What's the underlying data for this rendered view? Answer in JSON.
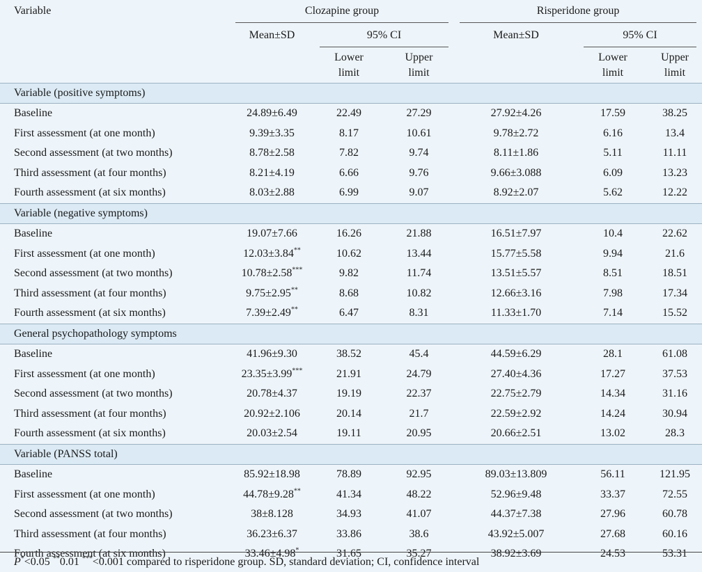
{
  "header": {
    "variable": "Variable",
    "clozapine_group": "Clozapine group",
    "risperidone_group": "Risperidone group",
    "mean_sd": "Mean±SD",
    "ci95": "95% CI",
    "lower_limit": "Lower limit",
    "upper_limit": "Upper limit"
  },
  "sections": [
    {
      "title": "Variable (positive symptoms)",
      "rows": [
        {
          "label": "Baseline",
          "c_mean": "24.89±6.49",
          "c_sup": "",
          "c_low": "22.49",
          "c_up": "27.29",
          "r_mean": "27.92±4.26",
          "r_low": "17.59",
          "r_up": "38.25"
        },
        {
          "label": "First assessment (at one month)",
          "c_mean": "9.39±3.35",
          "c_sup": "",
          "c_low": "8.17",
          "c_up": "10.61",
          "r_mean": "9.78±2.72",
          "r_low": "6.16",
          "r_up": "13.4"
        },
        {
          "label": "Second assessment (at two months)",
          "c_mean": "8.78±2.58",
          "c_sup": "",
          "c_low": "7.82",
          "c_up": "9.74",
          "r_mean": "8.11±1.86",
          "r_low": "5.11",
          "r_up": "11.11"
        },
        {
          "label": "Third assessment (at four months)",
          "c_mean": "8.21±4.19",
          "c_sup": "",
          "c_low": "6.66",
          "c_up": "9.76",
          "r_mean": "9.66±3.088",
          "r_low": "6.09",
          "r_up": "13.23"
        },
        {
          "label": "Fourth assessment (at six months)",
          "c_mean": "8.03±2.88",
          "c_sup": "",
          "c_low": "6.99",
          "c_up": "9.07",
          "r_mean": "8.92±2.07",
          "r_low": "5.62",
          "r_up": "12.22"
        }
      ]
    },
    {
      "title": "Variable (negative symptoms)",
      "rows": [
        {
          "label": "Baseline",
          "c_mean": "19.07±7.66",
          "c_sup": "",
          "c_low": "16.26",
          "c_up": "21.88",
          "r_mean": "16.51±7.97",
          "r_low": "10.4",
          "r_up": "22.62"
        },
        {
          "label": "First assessment (at one month)",
          "c_mean": "12.03±3.84",
          "c_sup": "**",
          "c_low": "10.62",
          "c_up": "13.44",
          "r_mean": "15.77±5.58",
          "r_low": "9.94",
          "r_up": "21.6"
        },
        {
          "label": "Second assessment (at two months)",
          "c_mean": "10.78±2.58",
          "c_sup": "***",
          "c_low": "9.82",
          "c_up": "11.74",
          "r_mean": "13.51±5.57",
          "r_low": "8.51",
          "r_up": "18.51"
        },
        {
          "label": "Third assessment (at four months)",
          "c_mean": "9.75±2.95",
          "c_sup": "**",
          "c_low": "8.68",
          "c_up": "10.82",
          "r_mean": "12.66±3.16",
          "r_low": "7.98",
          "r_up": "17.34"
        },
        {
          "label": "Fourth assessment (at six months)",
          "c_mean": "7.39±2.49",
          "c_sup": "**",
          "c_low": "6.47",
          "c_up": "8.31",
          "r_mean": "11.33±1.70",
          "r_low": "7.14",
          "r_up": "15.52"
        }
      ]
    },
    {
      "title": "General psychopathology symptoms",
      "rows": [
        {
          "label": "Baseline",
          "c_mean": "41.96±9.30",
          "c_sup": "",
          "c_low": "38.52",
          "c_up": "45.4",
          "r_mean": "44.59±6.29",
          "r_low": "28.1",
          "r_up": "61.08"
        },
        {
          "label": "First assessment (at one month)",
          "c_mean": "23.35±3.99",
          "c_sup": "***",
          "c_low": "21.91",
          "c_up": "24.79",
          "r_mean": "27.40±4.36",
          "r_low": "17.27",
          "r_up": "37.53"
        },
        {
          "label": "Second assessment (at two months)",
          "c_mean": "20.78±4.37",
          "c_sup": "",
          "c_low": "19.19",
          "c_up": "22.37",
          "r_mean": "22.75±2.79",
          "r_low": "14.34",
          "r_up": "31.16"
        },
        {
          "label": "Third assessment (at four months)",
          "c_mean": "20.92±2.106",
          "c_sup": "",
          "c_low": "20.14",
          "c_up": "21.7",
          "r_mean": "22.59±2.92",
          "r_low": "14.24",
          "r_up": "30.94"
        },
        {
          "label": "Fourth assessment (at six months)",
          "c_mean": "20.03±2.54",
          "c_sup": "",
          "c_low": "19.11",
          "c_up": "20.95",
          "r_mean": "20.66±2.51",
          "r_low": "13.02",
          "r_up": "28.3"
        }
      ]
    },
    {
      "title": "Variable (PANSS total)",
      "rows": [
        {
          "label": "Baseline",
          "c_mean": "85.92±18.98",
          "c_sup": "",
          "c_low": "78.89",
          "c_up": "92.95",
          "r_mean": "89.03±13.809",
          "r_low": "56.11",
          "r_up": "121.95"
        },
        {
          "label": "First assessment (at one month)",
          "c_mean": "44.78±9.28",
          "c_sup": "**",
          "c_low": "41.34",
          "c_up": "48.22",
          "r_mean": "52.96±9.48",
          "r_low": "33.37",
          "r_up": "72.55"
        },
        {
          "label": "Second assessment (at two months)",
          "c_mean": "38±8.128",
          "c_sup": "",
          "c_low": "34.93",
          "c_up": "41.07",
          "r_mean": "44.37±7.38",
          "r_low": "27.96",
          "r_up": "60.78"
        },
        {
          "label": "Third assessment (at four months)",
          "c_mean": "36.23±6.37",
          "c_sup": "",
          "c_low": "33.86",
          "c_up": "38.6",
          "r_mean": "43.92±5.007",
          "r_low": "27.68",
          "r_up": "60.16"
        },
        {
          "label": "Fourth assessment (at six months)",
          "c_mean": "33.46±4.98",
          "c_sup": "*",
          "c_low": "31.65",
          "c_up": "35.27",
          "r_mean": "38.92±3.69",
          "r_low": "24.53",
          "r_up": "53.31"
        }
      ]
    }
  ],
  "footnote": {
    "p_symbol": "P",
    "sup1": "*",
    "text1": "<0.05 ",
    "sup2": "**",
    "text2": "0.01 ",
    "sup3": "***",
    "text3": "<0.001 compared to risperidone group. SD, standard deviation; CI, confidence interval"
  }
}
